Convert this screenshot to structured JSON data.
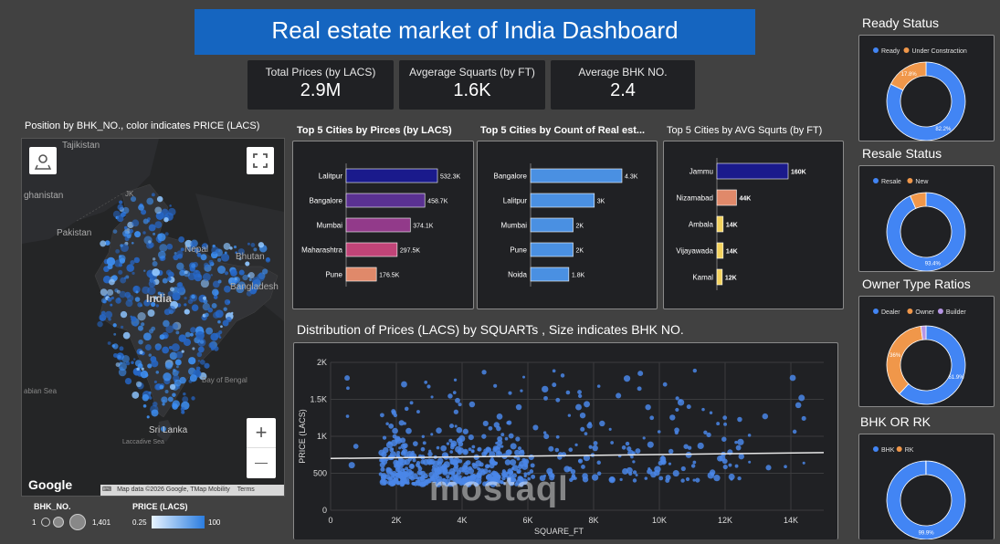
{
  "header": {
    "title": "Real estate market of India Dashboard"
  },
  "kpis": [
    {
      "label": "Total Prices (by LACS)",
      "value": "2.9M"
    },
    {
      "label": "Avgerage Squarts (by FT)",
      "value": "1.6K"
    },
    {
      "label": "Average BHK NO.",
      "value": "2.4"
    }
  ],
  "map": {
    "title": "Position by BHK_NO., color indicates PRICE (LACS)",
    "labels": {
      "tajikistan": "Tajikistan",
      "afghanistan": "ghanistan",
      "pakistan": "Pakistan",
      "nepal": "Nepal",
      "bhutan": "Bhutan",
      "bangladesh": "Bangladesh",
      "india": "India",
      "bay_of_bengal": "Bay of Bengal",
      "arabian_sea": "abian Sea",
      "sri_lanka": "Sri Lanka",
      "laccadive": "Laccadive Sea",
      "jk": "JK"
    },
    "google": "Google",
    "attribution": "Map data ©2026 Google, TMap Mobility",
    "terms": "Terms",
    "zoom_in": "+",
    "zoom_out": "—",
    "legend_bhk_title": "BHK_NO.",
    "legend_bhk_min": "1",
    "legend_bhk_max": "1,401",
    "legend_price_title": "PRICE (LACS)",
    "legend_price_min": "0.25",
    "legend_price_max": "100"
  },
  "donuts": [
    {
      "title": "Ready Status",
      "legend": [
        "Ready",
        "Under Constraction"
      ],
      "colors": [
        "#4285f4",
        "#f0974a"
      ],
      "values": [
        82.2,
        17.8
      ],
      "labels": [
        "82.2%",
        "17.8%"
      ]
    },
    {
      "title": "Resale Status",
      "legend": [
        "Resale",
        "New"
      ],
      "colors": [
        "#4285f4",
        "#f0974a"
      ],
      "values": [
        93.4,
        6.6
      ],
      "labels": [
        "93.4%",
        ""
      ]
    },
    {
      "title": "Owner Type Ratios",
      "legend": [
        "Dealer",
        "Owner",
        "Builder"
      ],
      "colors": [
        "#4285f4",
        "#f0974a",
        "#b695e5"
      ],
      "values": [
        61.9,
        36,
        2.1
      ],
      "labels": [
        "61.9%",
        "36%",
        ""
      ]
    },
    {
      "title": "BHK OR RK",
      "legend": [
        "BHK",
        "RK"
      ],
      "colors": [
        "#4285f4",
        "#f0974a"
      ],
      "values": [
        99.9,
        0.1
      ],
      "labels": [
        "99.9%",
        ""
      ]
    }
  ],
  "chart_data": [
    {
      "type": "bar",
      "orientation": "horizontal",
      "title": "Top 5 Cities by Pirces (by LACS)",
      "categories": [
        "Lalitpur",
        "Bangalore",
        "Mumbai",
        "Maharashtra",
        "Pune"
      ],
      "values": [
        532300,
        458700,
        374100,
        297500,
        176500
      ],
      "value_labels": [
        "532.3K",
        "458.7K",
        "374.1K",
        "297.5K",
        "176.5K"
      ],
      "colors": [
        "#1a1a8c",
        "#5a3192",
        "#923a8a",
        "#c14478",
        "#e0896a"
      ]
    },
    {
      "type": "bar",
      "orientation": "horizontal",
      "title": "Top 5 Cities by Count of Real est...",
      "categories": [
        "Bangalore",
        "Lalitpur",
        "Mumbai",
        "Pune",
        "Noida"
      ],
      "values": [
        4300,
        3000,
        2000,
        2000,
        1800
      ],
      "value_labels": [
        "4.3K",
        "3K",
        "2K",
        "2K",
        "1.8K"
      ],
      "colors": [
        "#4a90e2",
        "#4a90e2",
        "#4a90e2",
        "#4a90e2",
        "#4a90e2"
      ]
    },
    {
      "type": "bar",
      "orientation": "horizontal",
      "title": "Top 5 Cities by AVG Squrts (by FT)",
      "categories": [
        "Jammu",
        "Nizamabad",
        "Ambala",
        "Vijayawada",
        "Kamal"
      ],
      "values": [
        160000,
        44000,
        14000,
        14000,
        12000
      ],
      "value_labels": [
        "160K",
        "44K",
        "14K",
        "14K",
        "12K"
      ],
      "colors": [
        "#1a1a8c",
        "#e0896a",
        "#f4d35e",
        "#f4d35e",
        "#f4d35e"
      ]
    },
    {
      "type": "scatter",
      "title": "Distribution of Prices (LACS) by SQUARTs , Size indicates BHK NO.",
      "xlabel": "SQUARE_FT",
      "ylabel": "PRICE (LACS)",
      "xlim": [
        0,
        15000
      ],
      "ylim": [
        0,
        2000
      ],
      "x_ticks": [
        "0",
        "2K",
        "4K",
        "6K",
        "8K",
        "10K",
        "12K",
        "14K"
      ],
      "y_ticks": [
        "0",
        "500",
        "1K",
        "1.5K",
        "2K"
      ],
      "trendline": [
        [
          0,
          700
        ],
        [
          15000,
          780
        ]
      ]
    }
  ]
}
